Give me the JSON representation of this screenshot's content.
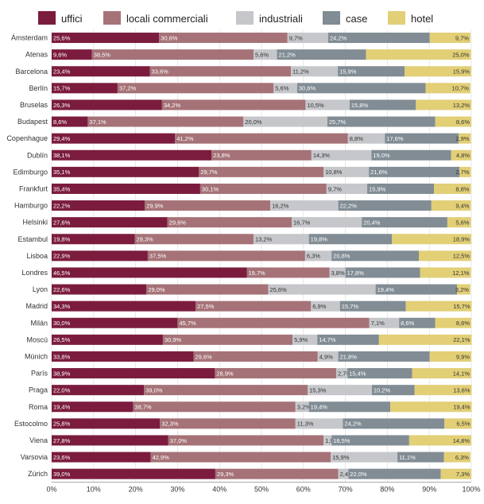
{
  "chart_data": {
    "type": "bar",
    "orientation": "horizontal",
    "stacked": true,
    "xlim": [
      0,
      100
    ],
    "x_ticks": [
      "0%",
      "10%",
      "20%",
      "30%",
      "40%",
      "50%",
      "60%",
      "70%",
      "80%",
      "90%",
      "100%"
    ],
    "legend_position": "top",
    "categories": [
      "Ámsterdam",
      "Atenas",
      "Barcelona",
      "Berlín",
      "Bruselas",
      "Budapest",
      "Copenhague",
      "Dublín",
      "Edimburgo",
      "Frankfurt",
      "Hamburgo",
      "Helsinki",
      "Estambul",
      "Lisboa",
      "Londres",
      "Lyon",
      "Madrid",
      "Milán",
      "Moscú",
      "Múnich",
      "París",
      "Praga",
      "Roma",
      "Estocolmo",
      "Viena",
      "Varsovia",
      "Zúrich"
    ],
    "series": [
      {
        "name": "uffici",
        "color": "#7b1c3e",
        "label_color": "#ffffff",
        "values": [
          25.6,
          9.6,
          23.4,
          15.7,
          26.3,
          8.6,
          29.4,
          38.1,
          35.1,
          35.4,
          22.2,
          27.6,
          19.8,
          22.9,
          46.5,
          22.6,
          34.3,
          30.0,
          26.5,
          33.8,
          38.9,
          22.0,
          19.4,
          25.8,
          27.8,
          23.6,
          39.0
        ],
        "labels": [
          "25,6%",
          "9,6%",
          "23,4%",
          "15,7%",
          "26,3%",
          "8,6%",
          "29,4%",
          "38,1%",
          "35,1%",
          "35,4%",
          "22,2%",
          "27,6%",
          "19,8%",
          "22,9%",
          "46,5%",
          "22,6%",
          "34,3%",
          "30,0%",
          "26,5%",
          "33,8%",
          "38,9%",
          "22,0%",
          "19,4%",
          "25,8%",
          "27,8%",
          "23,6%",
          "39,0%"
        ]
      },
      {
        "name": "locali commerciali",
        "color": "#a57278",
        "label_color": "#ffffff",
        "values": [
          30.6,
          38.5,
          33.6,
          37.2,
          34.2,
          37.1,
          41.2,
          23.8,
          29.7,
          30.1,
          29.9,
          29.6,
          28.3,
          37.5,
          19.7,
          29.0,
          27.5,
          45.7,
          30.9,
          29.6,
          28.9,
          39.0,
          38.7,
          32.3,
          37.0,
          42.9,
          29.3
        ],
        "labels": [
          "30,6%",
          "38,5%",
          "33,6%",
          "37,2%",
          "34,2%",
          "37,1%",
          "41,2%",
          "23,8%",
          "29,7%",
          "30,1%",
          "29,9%",
          "29,6%",
          "28,3%",
          "37,5%",
          "19,7%",
          "29,0%",
          "27,5%",
          "45,7%",
          "30,9%",
          "29,6%",
          "28,9%",
          "39,0%",
          "38,7%",
          "32,3%",
          "37,0%",
          "42,9%",
          "29,3%"
        ]
      },
      {
        "name": "industriali",
        "color": "#c6c7cb",
        "label_color": "#333333",
        "values": [
          9.7,
          5.6,
          11.2,
          5.6,
          10.5,
          20.0,
          8.8,
          14.3,
          10.8,
          9.7,
          16.2,
          16.7,
          13.2,
          6.3,
          3.8,
          25.6,
          6.9,
          7.1,
          5.9,
          4.9,
          2.7,
          15.3,
          3.2,
          11.3,
          1.9,
          15.9,
          2.4
        ],
        "labels": [
          "9,7%",
          "5,6%",
          "11,2%",
          "5,6%",
          "10,5%",
          "20,0%",
          "8,8%",
          "14,3%",
          "10,8%",
          "9,7%",
          "16,2%",
          "16,7%",
          "13,2%",
          "6,3%",
          "3,8%",
          "25,6%",
          "6,9%",
          "7,1%",
          "5,9%",
          "4,9%",
          "2,7%",
          "15,3%",
          "3,2%",
          "11,3%",
          "1,9%",
          "15,9%",
          "2,4%"
        ]
      },
      {
        "name": "case",
        "color": "#818c94",
        "label_color": "#ffffff",
        "values": [
          24.2,
          21.2,
          15.9,
          30.6,
          15.8,
          25.7,
          17.6,
          19.0,
          21.6,
          15.9,
          22.2,
          20.4,
          19.8,
          20.8,
          17.8,
          19.4,
          15.7,
          8.6,
          14.7,
          21.8,
          15.4,
          10.2,
          19.4,
          24.2,
          18.5,
          11.1,
          22.0
        ],
        "labels": [
          "24,2%",
          "21,2%",
          "15,9%",
          "30,6%",
          "15,8%",
          "25,7%",
          "17,6%",
          "19,0%",
          "21,6%",
          "15,9%",
          "22,2%",
          "20,4%",
          "19,8%",
          "20,8%",
          "17,8%",
          "19,4%",
          "15,7%",
          "8,6%",
          "14,7%",
          "21,8%",
          "15,4%",
          "10,2%",
          "19,4%",
          "24,2%",
          "18,5%",
          "11,1%",
          "22,0%"
        ]
      },
      {
        "name": "hotel",
        "color": "#e2cf76",
        "label_color": "#333333",
        "values": [
          9.7,
          25.0,
          15.9,
          10.7,
          13.2,
          8.6,
          2.9,
          4.8,
          2.7,
          8.8,
          9.4,
          5.6,
          18.9,
          12.5,
          12.1,
          3.2,
          15.7,
          8.6,
          22.1,
          9.9,
          14.1,
          13.6,
          19.4,
          6.5,
          14.8,
          6.3,
          7.3
        ],
        "labels": [
          "9,7%",
          "25,0%",
          "15,9%",
          "10,7%",
          "13,2%",
          "8,6%",
          "2,9%",
          "4,8%",
          "2,7%",
          "8,8%",
          "9,4%",
          "5,6%",
          "18,9%",
          "12,5%",
          "12,1%",
          "3,2%",
          "15,7%",
          "8,6%",
          "22,1%",
          "9,9%",
          "14,1%",
          "13,6%",
          "19,4%",
          "6,5%",
          "14,8%",
          "6,3%",
          "7,3%"
        ]
      }
    ]
  }
}
